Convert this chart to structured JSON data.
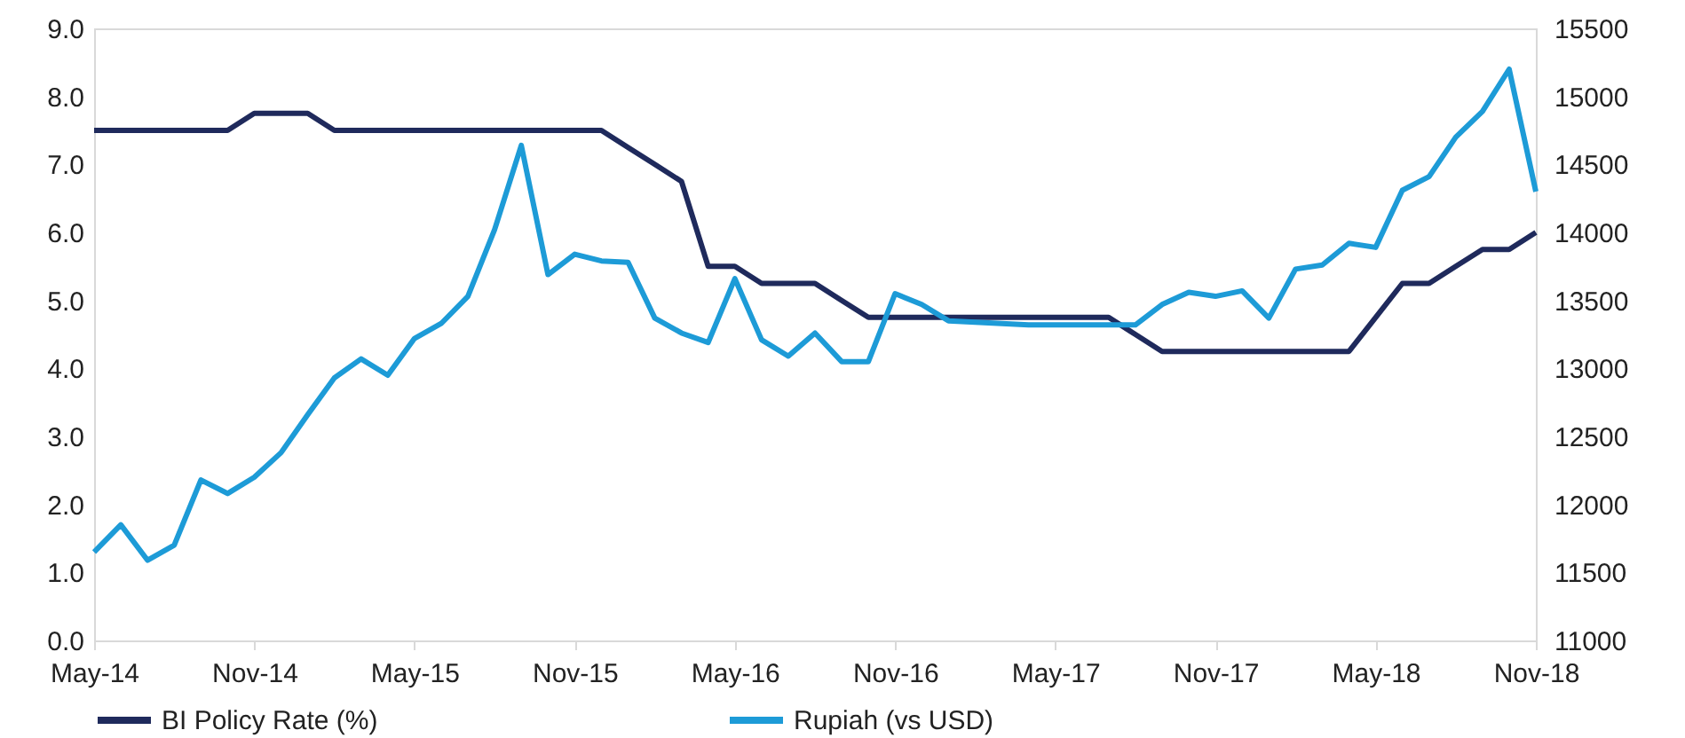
{
  "chart_data": {
    "type": "line",
    "categories": [
      "May-14",
      null,
      null,
      null,
      null,
      null,
      "Nov-14",
      null,
      null,
      null,
      null,
      null,
      "May-15",
      null,
      null,
      null,
      null,
      null,
      "Nov-15",
      null,
      null,
      null,
      null,
      null,
      "May-16",
      null,
      null,
      null,
      null,
      null,
      "Nov-16",
      null,
      null,
      null,
      null,
      null,
      "May-17",
      null,
      null,
      null,
      null,
      null,
      "Nov-17",
      null,
      null,
      null,
      null,
      null,
      "May-18",
      null,
      null,
      null,
      null,
      null,
      "Nov-18"
    ],
    "series": [
      {
        "name": "BI Policy Rate (%)",
        "color": "#1f2a5c",
        "values": [
          7.5,
          7.5,
          7.5,
          7.5,
          7.5,
          7.5,
          7.75,
          7.75,
          7.75,
          7.5,
          7.5,
          7.5,
          7.5,
          7.5,
          7.5,
          7.5,
          7.5,
          7.5,
          7.5,
          7.5,
          7.25,
          7.0,
          6.75,
          5.5,
          5.5,
          5.25,
          5.25,
          5.25,
          5.0,
          4.75,
          4.75,
          4.75,
          4.75,
          4.75,
          4.75,
          4.75,
          4.75,
          4.75,
          4.75,
          4.5,
          4.25,
          4.25,
          4.25,
          4.25,
          4.25,
          4.25,
          4.25,
          4.25,
          4.75,
          5.25,
          5.25,
          5.5,
          5.75,
          5.75,
          6.0
        ]
      },
      {
        "name": "Rupiah (vs USD)",
        "color": "#1d9bd7",
        "axis": "y2",
        "values": [
          11650,
          11850,
          11590,
          11700,
          12180,
          12080,
          12200,
          12380,
          12660,
          12930,
          13070,
          12950,
          13220,
          13330,
          13530,
          14020,
          14640,
          13690,
          13840,
          13790,
          13780,
          13370,
          13260,
          13190,
          13660,
          13210,
          13090,
          13260,
          13050,
          13050,
          13550,
          13470,
          13350,
          13340,
          13330,
          13320,
          13320,
          13320,
          13320,
          13320,
          13470,
          13560,
          13530,
          13570,
          13370,
          13730,
          13760,
          13920,
          13890,
          14310,
          14410,
          14700,
          14890,
          15200,
          14300
        ]
      }
    ],
    "ylim": [
      0,
      9
    ],
    "yticks": [
      {
        "value": 0,
        "label": "0.0"
      },
      {
        "value": 1,
        "label": "1.0"
      },
      {
        "value": 2,
        "label": "2.0"
      },
      {
        "value": 3,
        "label": "3.0"
      },
      {
        "value": 4,
        "label": "4.0"
      },
      {
        "value": 5,
        "label": "5.0"
      },
      {
        "value": 6,
        "label": "6.0"
      },
      {
        "value": 7,
        "label": "7.0"
      },
      {
        "value": 8,
        "label": "8.0"
      },
      {
        "value": 9,
        "label": "9.0"
      }
    ],
    "y2lim": [
      11000,
      15500
    ],
    "y2ticks": [
      11000,
      11500,
      12000,
      12500,
      13000,
      13500,
      14000,
      14500,
      15000,
      15500
    ],
    "legend": "bottom"
  }
}
